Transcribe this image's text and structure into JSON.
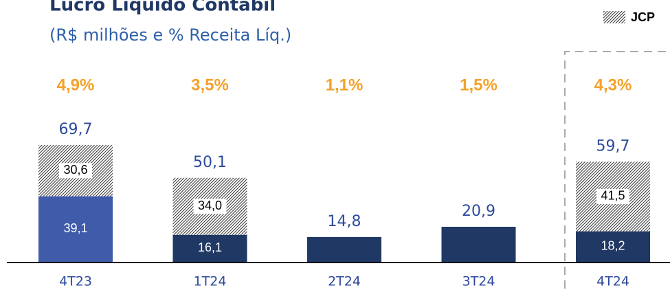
{
  "chart_data": {
    "type": "stacked_bar",
    "title": "Lucro Líquido Contábil",
    "subtitle": "(R$ milhões e % Receita Líq.)",
    "categories": [
      "4T23",
      "1T24",
      "2T24",
      "3T24",
      "4T24"
    ],
    "series": [
      {
        "values": [
          39.1,
          16.1,
          14.8,
          20.9,
          18.2
        ],
        "value_labels": [
          "39,1",
          "16,1",
          null,
          null,
          "18,2"
        ],
        "colors": [
          "#3f5ba9",
          "#1f3864",
          "#1f3864",
          "#1f3864",
          "#1f3864"
        ]
      },
      {
        "name": "JCP",
        "values": [
          30.6,
          34.0,
          null,
          null,
          41.5
        ],
        "value_labels": [
          "30,6",
          "34,0",
          null,
          null,
          "41,5"
        ],
        "pattern": "hatch"
      }
    ],
    "totals": [
      69.7,
      50.1,
      14.8,
      20.9,
      59.7
    ],
    "total_labels": [
      "69,7",
      "50,1",
      "14,8",
      "20,9",
      "59,7"
    ],
    "margins": [
      4.9,
      3.5,
      1.1,
      1.5,
      4.3
    ],
    "margin_labels": [
      "4,9%",
      "3,5%",
      "1,1%",
      "1,5%",
      "4,3%"
    ]
  }
}
